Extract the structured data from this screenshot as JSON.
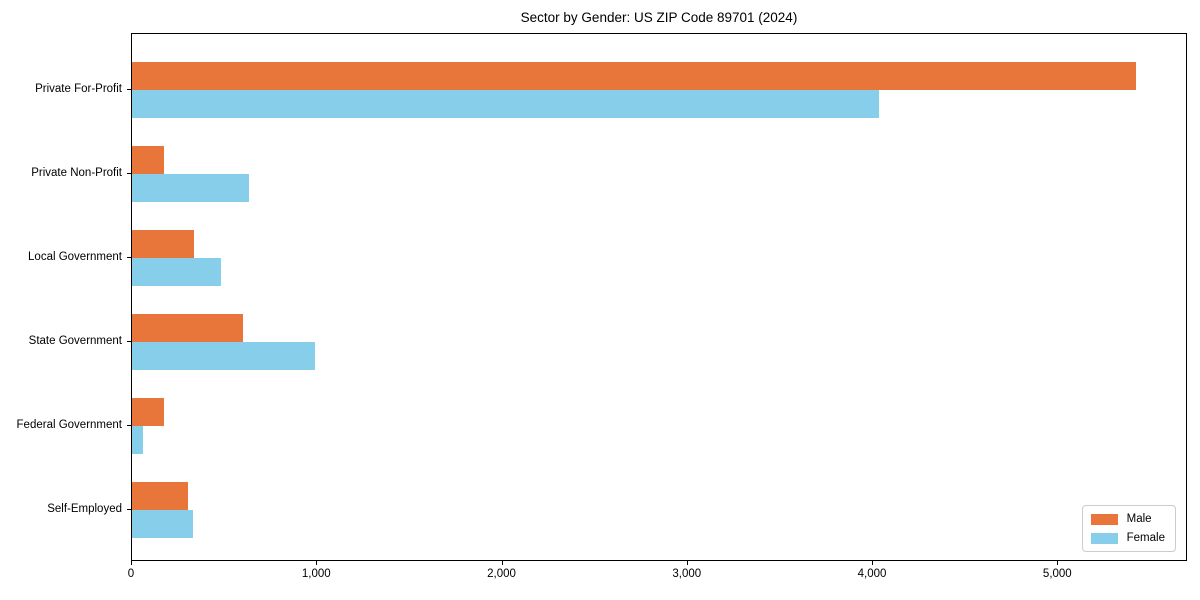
{
  "chart_data": {
    "type": "bar",
    "orientation": "horizontal",
    "title": "Sector by Gender: US ZIP Code 89701 (2024)",
    "categories": [
      "Private For-Profit",
      "Private Non-Profit",
      "Local Government",
      "State Government",
      "Federal Government",
      "Self-Employed"
    ],
    "series": [
      {
        "name": "Male",
        "color": "#e8763b",
        "values": [
          5420,
          175,
          335,
          600,
          175,
          300
        ]
      },
      {
        "name": "Female",
        "color": "#87ceeb",
        "values": [
          4030,
          630,
          480,
          990,
          60,
          330
        ]
      }
    ],
    "xlabel": "",
    "ylabel": "",
    "xlim": [
      0,
      5700
    ],
    "xticks": [
      0,
      1000,
      2000,
      3000,
      4000,
      5000
    ],
    "xtick_labels": [
      "0",
      "1,000",
      "2,000",
      "3,000",
      "4,000",
      "5,000"
    ],
    "grid": false,
    "legend_position": "lower right",
    "colors": {
      "axis": "#000000",
      "background": "#ffffff",
      "legend_border": "#cccccc"
    }
  }
}
